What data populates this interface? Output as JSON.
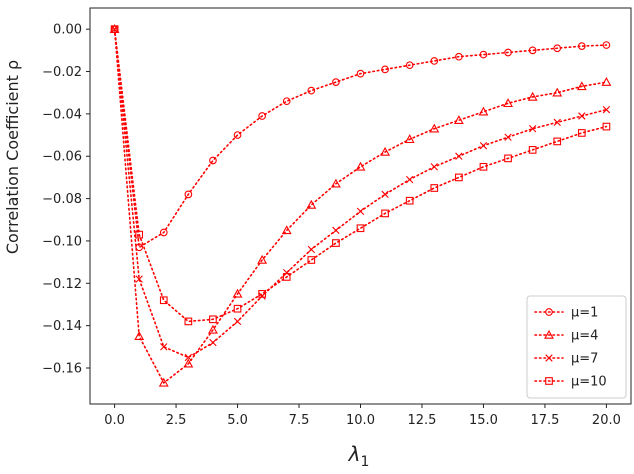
{
  "chart_data": {
    "type": "line",
    "xlabel": "λ1",
    "ylabel": "Correlation Coefficient ρ",
    "xlim": [
      -1.0,
      21.0
    ],
    "ylim": [
      -0.177,
      0.01
    ],
    "xticks": [
      0.0,
      2.5,
      5.0,
      7.5,
      10.0,
      12.5,
      15.0,
      17.5,
      20.0
    ],
    "xtick_labels": [
      "0.0",
      "2.5",
      "5.0",
      "7.5",
      "10.0",
      "12.5",
      "15.0",
      "17.5",
      "20.0"
    ],
    "yticks": [
      0.0,
      -0.02,
      -0.04,
      -0.06,
      -0.08,
      -0.1,
      -0.12,
      -0.14,
      -0.16
    ],
    "ytick_labels": [
      "0.00",
      "−0.02",
      "−0.04",
      "−0.06",
      "−0.08",
      "−0.10",
      "−0.12",
      "−0.14",
      "−0.16"
    ],
    "grid": false,
    "legend_position": "lower-right",
    "line_style": "dotted",
    "color": "#ff0000",
    "x": [
      0,
      1,
      2,
      3,
      4,
      5,
      6,
      7,
      8,
      9,
      10,
      11,
      12,
      13,
      14,
      15,
      16,
      17,
      18,
      19,
      20
    ],
    "series": [
      {
        "name": "μ=1",
        "marker": "circle",
        "values": [
          0.0,
          -0.103,
          -0.096,
          -0.078,
          -0.062,
          -0.05,
          -0.041,
          -0.034,
          -0.029,
          -0.025,
          -0.021,
          -0.019,
          -0.017,
          -0.015,
          -0.013,
          -0.012,
          -0.011,
          -0.01,
          -0.009,
          -0.008,
          -0.0075
        ]
      },
      {
        "name": "μ=4",
        "marker": "triangle",
        "values": [
          0.0,
          -0.145,
          -0.167,
          -0.158,
          -0.142,
          -0.125,
          -0.109,
          -0.095,
          -0.083,
          -0.073,
          -0.065,
          -0.058,
          -0.052,
          -0.047,
          -0.043,
          -0.039,
          -0.035,
          -0.032,
          -0.03,
          -0.027,
          -0.025
        ]
      },
      {
        "name": "μ=7",
        "marker": "x",
        "values": [
          0.0,
          -0.118,
          -0.15,
          -0.155,
          -0.148,
          -0.138,
          -0.126,
          -0.115,
          -0.104,
          -0.095,
          -0.086,
          -0.078,
          -0.071,
          -0.065,
          -0.06,
          -0.055,
          -0.051,
          -0.047,
          -0.044,
          -0.041,
          -0.038
        ]
      },
      {
        "name": "μ=10",
        "marker": "square",
        "values": [
          0.0,
          -0.097,
          -0.128,
          -0.138,
          -0.137,
          -0.132,
          -0.125,
          -0.117,
          -0.109,
          -0.101,
          -0.094,
          -0.087,
          -0.081,
          -0.075,
          -0.07,
          -0.065,
          -0.061,
          -0.057,
          -0.053,
          -0.049,
          -0.046
        ]
      }
    ]
  }
}
